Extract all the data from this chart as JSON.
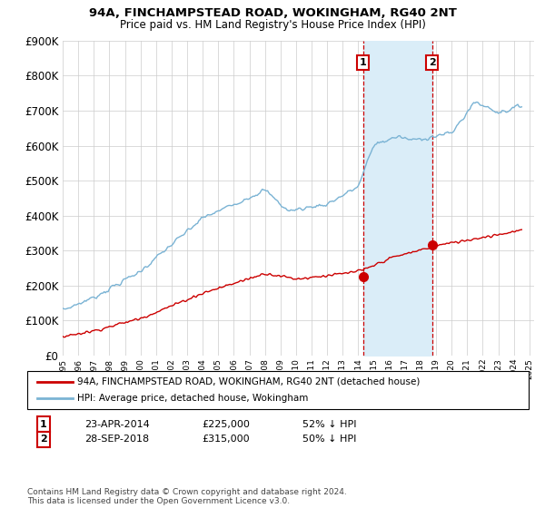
{
  "title": "94A, FINCHAMPSTEAD ROAD, WOKINGHAM, RG40 2NT",
  "subtitle": "Price paid vs. HM Land Registry's House Price Index (HPI)",
  "ylim": [
    0,
    900000
  ],
  "yticks": [
    0,
    100000,
    200000,
    300000,
    400000,
    500000,
    600000,
    700000,
    800000,
    900000
  ],
  "transaction1": {
    "date_label": "23-APR-2014",
    "price": 225000,
    "pct": "52%",
    "direction": "↓",
    "label": "1",
    "year": 2014.3
  },
  "transaction2": {
    "date_label": "28-SEP-2018",
    "price": 315000,
    "pct": "50%",
    "direction": "↓",
    "label": "2",
    "year": 2018.75
  },
  "hpi_color": "#7ab3d4",
  "house_color": "#cc0000",
  "shade_color": "#daedf8",
  "marker_color": "#cc0000",
  "legend_label_house": "94A, FINCHAMPSTEAD ROAD, WOKINGHAM, RG40 2NT (detached house)",
  "legend_label_hpi": "HPI: Average price, detached house, Wokingham",
  "footnote": "Contains HM Land Registry data © Crown copyright and database right 2024.\nThis data is licensed under the Open Government Licence v3.0.",
  "background_color": "#ffffff",
  "grid_color": "#cccccc",
  "hpi_years": [
    1995.0,
    1995.08,
    1995.17,
    1995.25,
    1995.33,
    1995.42,
    1995.5,
    1995.58,
    1995.67,
    1995.75,
    1995.83,
    1995.92,
    1996.0,
    1996.08,
    1996.17,
    1996.25,
    1996.33,
    1996.42,
    1996.5,
    1996.58,
    1996.67,
    1996.75,
    1996.83,
    1996.92,
    1997.0,
    1997.08,
    1997.17,
    1997.25,
    1997.33,
    1997.42,
    1997.5,
    1997.58,
    1997.67,
    1997.75,
    1997.83,
    1997.92,
    1998.0,
    1998.08,
    1998.17,
    1998.25,
    1998.33,
    1998.42,
    1998.5,
    1998.58,
    1998.67,
    1998.75,
    1998.83,
    1998.92,
    1999.0,
    1999.08,
    1999.17,
    1999.25,
    1999.33,
    1999.42,
    1999.5,
    1999.58,
    1999.67,
    1999.75,
    1999.83,
    1999.92,
    2000.0,
    2000.08,
    2000.17,
    2000.25,
    2000.33,
    2000.42,
    2000.5,
    2000.58,
    2000.67,
    2000.75,
    2000.83,
    2000.92,
    2001.0,
    2001.08,
    2001.17,
    2001.25,
    2001.33,
    2001.42,
    2001.5,
    2001.58,
    2001.67,
    2001.75,
    2001.83,
    2001.92,
    2002.0,
    2002.08,
    2002.17,
    2002.25,
    2002.33,
    2002.42,
    2002.5,
    2002.58,
    2002.67,
    2002.75,
    2002.83,
    2002.92,
    2003.0,
    2003.08,
    2003.17,
    2003.25,
    2003.33,
    2003.42,
    2003.5,
    2003.58,
    2003.67,
    2003.75,
    2003.83,
    2003.92,
    2004.0,
    2004.08,
    2004.17,
    2004.25,
    2004.33,
    2004.42,
    2004.5,
    2004.58,
    2004.67,
    2004.75,
    2004.83,
    2004.92,
    2005.0,
    2005.08,
    2005.17,
    2005.25,
    2005.33,
    2005.42,
    2005.5,
    2005.58,
    2005.67,
    2005.75,
    2005.83,
    2005.92,
    2006.0,
    2006.08,
    2006.17,
    2006.25,
    2006.33,
    2006.42,
    2006.5,
    2006.58,
    2006.67,
    2006.75,
    2006.83,
    2006.92,
    2007.0,
    2007.08,
    2007.17,
    2007.25,
    2007.33,
    2007.42,
    2007.5,
    2007.58,
    2007.67,
    2007.75,
    2007.83,
    2007.92,
    2008.0,
    2008.08,
    2008.17,
    2008.25,
    2008.33,
    2008.42,
    2008.5,
    2008.58,
    2008.67,
    2008.75,
    2008.83,
    2008.92,
    2009.0,
    2009.08,
    2009.17,
    2009.25,
    2009.33,
    2009.42,
    2009.5,
    2009.58,
    2009.67,
    2009.75,
    2009.83,
    2009.92,
    2010.0,
    2010.08,
    2010.17,
    2010.25,
    2010.33,
    2010.42,
    2010.5,
    2010.58,
    2010.67,
    2010.75,
    2010.83,
    2010.92,
    2011.0,
    2011.08,
    2011.17,
    2011.25,
    2011.33,
    2011.42,
    2011.5,
    2011.58,
    2011.67,
    2011.75,
    2011.83,
    2011.92,
    2012.0,
    2012.08,
    2012.17,
    2012.25,
    2012.33,
    2012.42,
    2012.5,
    2012.58,
    2012.67,
    2012.75,
    2012.83,
    2012.92,
    2013.0,
    2013.08,
    2013.17,
    2013.25,
    2013.33,
    2013.42,
    2013.5,
    2013.58,
    2013.67,
    2013.75,
    2013.83,
    2013.92,
    2014.0,
    2014.08,
    2014.17,
    2014.25,
    2014.33,
    2014.42,
    2014.5,
    2014.58,
    2014.67,
    2014.75,
    2014.83,
    2014.92,
    2015.0,
    2015.08,
    2015.17,
    2015.25,
    2015.33,
    2015.42,
    2015.5,
    2015.58,
    2015.67,
    2015.75,
    2015.83,
    2015.92,
    2016.0,
    2016.08,
    2016.17,
    2016.25,
    2016.33,
    2016.42,
    2016.5,
    2016.58,
    2016.67,
    2016.75,
    2016.83,
    2016.92,
    2017.0,
    2017.08,
    2017.17,
    2017.25,
    2017.33,
    2017.42,
    2017.5,
    2017.58,
    2017.67,
    2017.75,
    2017.83,
    2017.92,
    2018.0,
    2018.08,
    2018.17,
    2018.25,
    2018.33,
    2018.42,
    2018.5,
    2018.58,
    2018.67,
    2018.75,
    2018.83,
    2018.92,
    2019.0,
    2019.08,
    2019.17,
    2019.25,
    2019.33,
    2019.42,
    2019.5,
    2019.58,
    2019.67,
    2019.75,
    2019.83,
    2019.92,
    2020.0,
    2020.08,
    2020.17,
    2020.25,
    2020.33,
    2020.42,
    2020.5,
    2020.58,
    2020.67,
    2020.75,
    2020.83,
    2020.92,
    2021.0,
    2021.08,
    2021.17,
    2021.25,
    2021.33,
    2021.42,
    2021.5,
    2021.58,
    2021.67,
    2021.75,
    2021.83,
    2021.92,
    2022.0,
    2022.08,
    2022.17,
    2022.25,
    2022.33,
    2022.42,
    2022.5,
    2022.58,
    2022.67,
    2022.75,
    2022.83,
    2022.92,
    2023.0,
    2023.08,
    2023.17,
    2023.25,
    2023.33,
    2023.42,
    2023.5,
    2023.58,
    2023.67,
    2023.75,
    2023.83,
    2023.92,
    2024.0,
    2024.08,
    2024.17,
    2024.25,
    2024.33,
    2024.42,
    2024.5
  ],
  "xlim_left": 1995.0,
  "xlim_right": 2025.3
}
